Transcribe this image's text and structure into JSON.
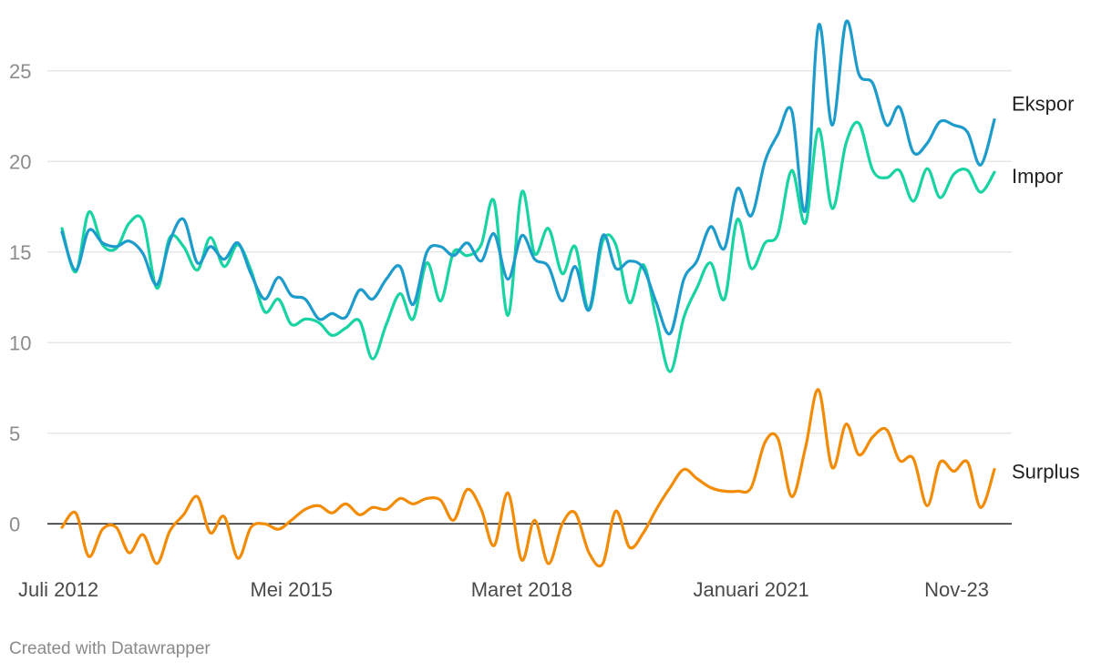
{
  "credit": "Created with Datawrapper",
  "chart_data": {
    "type": "line",
    "x": [
      2012.5,
      2012.67,
      2012.83,
      2013.0,
      2013.17,
      2013.33,
      2013.5,
      2013.67,
      2013.83,
      2014.0,
      2014.17,
      2014.33,
      2014.5,
      2014.67,
      2014.83,
      2015.0,
      2015.17,
      2015.33,
      2015.5,
      2015.67,
      2015.83,
      2016.0,
      2016.17,
      2016.33,
      2016.5,
      2016.67,
      2016.83,
      2017.0,
      2017.17,
      2017.33,
      2017.5,
      2017.67,
      2017.83,
      2018.0,
      2018.17,
      2018.33,
      2018.5,
      2018.67,
      2018.83,
      2019.0,
      2019.17,
      2019.33,
      2019.5,
      2019.67,
      2019.83,
      2020.0,
      2020.17,
      2020.33,
      2020.5,
      2020.67,
      2020.83,
      2021.0,
      2021.17,
      2021.33,
      2021.5,
      2021.67,
      2021.83,
      2022.0,
      2022.17,
      2022.33,
      2022.5,
      2022.67,
      2022.83,
      2023.0,
      2023.17,
      2023.33,
      2023.5,
      2023.67,
      2023.83,
      2024.0
    ],
    "x_ticks": [
      {
        "value": 2012.5,
        "label": "Juli 2012"
      },
      {
        "value": 2015.33,
        "label": "Mei 2015"
      },
      {
        "value": 2018.17,
        "label": "Maret 2018"
      },
      {
        "value": 2021.0,
        "label": "Januari 2021"
      },
      {
        "value": 2023.83,
        "label": "Nov-23"
      }
    ],
    "y_ticks": [
      0,
      5,
      10,
      15,
      20,
      25
    ],
    "ylim": [
      -2.5,
      27.5
    ],
    "xlim": [
      2012.5,
      2024.0
    ],
    "grid": true,
    "legend": "direct labels at line ends",
    "series": [
      {
        "name": "Ekspor",
        "color": "#1d9ccc",
        "values": [
          16.1,
          14.0,
          16.2,
          15.5,
          15.3,
          15.6,
          14.9,
          13.2,
          15.6,
          16.8,
          14.4,
          15.3,
          14.6,
          15.5,
          13.8,
          12.4,
          13.6,
          12.6,
          12.4,
          11.3,
          11.6,
          11.4,
          12.9,
          12.4,
          13.5,
          14.2,
          12.1,
          15.0,
          15.3,
          14.8,
          15.5,
          14.5,
          16.0,
          13.5,
          15.9,
          14.6,
          14.2,
          12.3,
          14.2,
          11.8,
          15.9,
          14.1,
          14.5,
          14.1,
          12.2,
          10.5,
          13.5,
          14.5,
          16.4,
          15.2,
          18.5,
          17.0,
          20.0,
          21.5,
          22.8,
          17.3,
          27.5,
          22.0,
          27.7,
          24.8,
          24.3,
          22.0,
          23.0,
          20.5,
          21.0,
          22.2,
          22.0,
          21.6,
          19.8,
          22.3
        ]
      },
      {
        "name": "Impor",
        "color": "#17d4a2",
        "values": [
          16.3,
          13.9,
          17.2,
          15.4,
          15.2,
          16.6,
          16.7,
          13.0,
          15.8,
          15.3,
          14.0,
          15.8,
          14.2,
          15.4,
          14.0,
          11.7,
          12.4,
          11.0,
          11.3,
          11.1,
          10.4,
          10.8,
          11.2,
          9.1,
          11.0,
          12.7,
          11.3,
          14.4,
          12.3,
          15.0,
          14.8,
          15.4,
          17.8,
          11.5,
          18.3,
          14.9,
          16.3,
          13.8,
          15.3,
          11.8,
          15.6,
          15.4,
          12.2,
          14.3,
          11.3,
          8.4,
          11.4,
          13.0,
          14.4,
          12.4,
          16.8,
          14.1,
          15.5,
          16.0,
          19.5,
          16.6,
          21.8,
          17.4,
          21.0,
          22.1,
          19.5,
          19.1,
          19.5,
          17.8,
          19.6,
          18.0,
          19.3,
          19.5,
          18.3,
          19.4
        ]
      },
      {
        "name": "Surplus",
        "color": "#f28c06",
        "values": [
          -0.2,
          0.6,
          -1.8,
          -0.3,
          -0.2,
          -1.6,
          -0.6,
          -2.2,
          -0.4,
          0.5,
          1.5,
          -0.5,
          0.4,
          -1.9,
          -0.2,
          0.0,
          -0.3,
          0.2,
          0.8,
          1.0,
          0.6,
          1.1,
          0.5,
          0.9,
          0.8,
          1.4,
          1.1,
          1.4,
          1.3,
          0.2,
          1.9,
          0.8,
          -1.2,
          1.7,
          -2.0,
          0.2,
          -2.2,
          0.0,
          0.6,
          -1.6,
          -2.2,
          0.7,
          -1.3,
          -0.5,
          0.8,
          2.0,
          3.0,
          2.5,
          2.0,
          1.8,
          1.8,
          2.0,
          4.5,
          4.7,
          1.5,
          4.2,
          7.4,
          3.1,
          5.5,
          3.8,
          4.8,
          5.2,
          3.5,
          3.6,
          1.0,
          3.4,
          2.9,
          3.4,
          0.9,
          3.0
        ]
      }
    ]
  }
}
